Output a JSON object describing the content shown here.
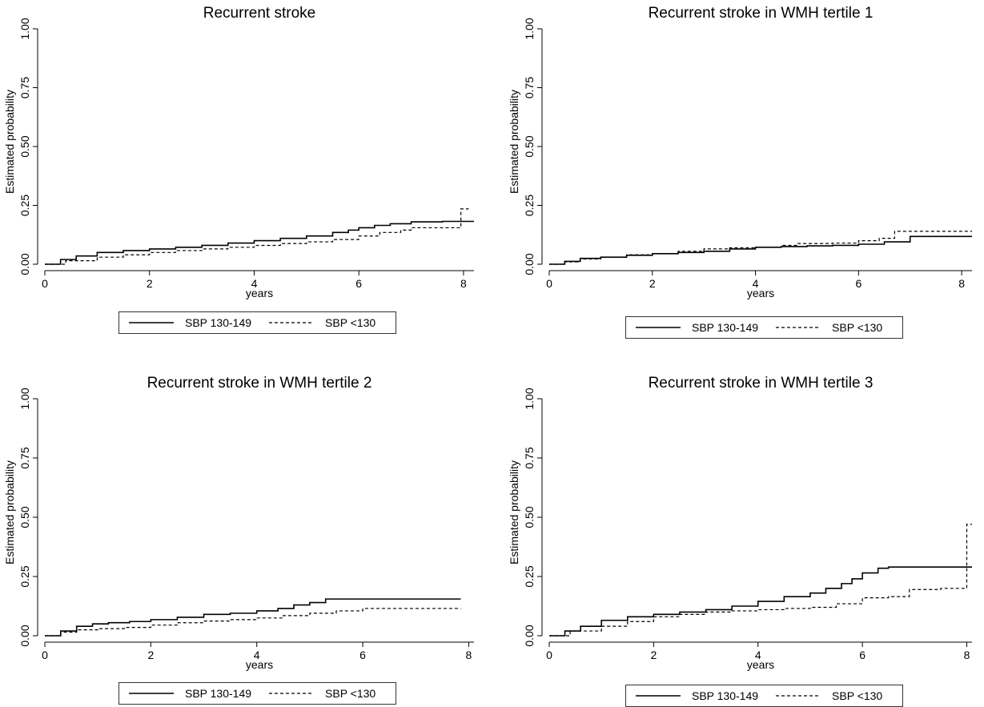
{
  "chart_data": [
    {
      "type": "line",
      "title": "Recurrent stroke",
      "xlabel": "years",
      "ylabel": "Estimated probability",
      "xlim": [
        0,
        8.2
      ],
      "ylim": [
        0,
        1
      ],
      "xticks": [
        0,
        2,
        4,
        6,
        8
      ],
      "yticks": [
        "0.00",
        "0.25",
        "0.50",
        "0.75",
        "1.00"
      ],
      "legend": "bottom",
      "series": [
        {
          "name": "SBP 130-149",
          "style": "solid",
          "x": [
            0,
            0.3,
            0.6,
            1.0,
            1.5,
            2.0,
            2.5,
            3.0,
            3.5,
            4.0,
            4.5,
            5.0,
            5.5,
            5.8,
            6.0,
            6.3,
            6.6,
            7.0,
            7.6,
            8.0,
            8.2
          ],
          "y": [
            0,
            0.02,
            0.035,
            0.05,
            0.058,
            0.065,
            0.072,
            0.08,
            0.09,
            0.1,
            0.11,
            0.12,
            0.135,
            0.145,
            0.155,
            0.165,
            0.172,
            0.18,
            0.182,
            0.182,
            0.182
          ]
        },
        {
          "name": "SBP <130",
          "style": "dashed",
          "x": [
            0,
            0.4,
            1.0,
            1.5,
            2.0,
            2.5,
            3.0,
            3.5,
            4.0,
            4.5,
            5.0,
            5.5,
            6.0,
            6.4,
            6.8,
            7.0,
            7.9,
            7.95,
            8.1
          ],
          "y": [
            0,
            0.015,
            0.03,
            0.04,
            0.05,
            0.058,
            0.065,
            0.072,
            0.08,
            0.088,
            0.095,
            0.105,
            0.12,
            0.135,
            0.145,
            0.155,
            0.155,
            0.235,
            0.235
          ]
        }
      ]
    },
    {
      "type": "line",
      "title": "Recurrent stroke in WMH tertile 1",
      "xlabel": "years",
      "ylabel": "Estimated probability",
      "xlim": [
        0,
        8.2
      ],
      "ylim": [
        0,
        1
      ],
      "xticks": [
        0,
        2,
        4,
        6,
        8
      ],
      "yticks": [
        "0.00",
        "0.25",
        "0.50",
        "0.75",
        "1.00"
      ],
      "legend": "bottom",
      "series": [
        {
          "name": "SBP 130-149",
          "style": "solid",
          "x": [
            0,
            0.3,
            0.6,
            1.0,
            1.5,
            2.0,
            2.5,
            3.0,
            3.5,
            4.0,
            4.5,
            5.0,
            5.5,
            6.0,
            6.5,
            7.0,
            8.2
          ],
          "y": [
            0,
            0.012,
            0.025,
            0.03,
            0.038,
            0.045,
            0.05,
            0.055,
            0.065,
            0.072,
            0.075,
            0.078,
            0.08,
            0.085,
            0.095,
            0.118,
            0.118
          ]
        },
        {
          "name": "SBP <130",
          "style": "dashed",
          "x": [
            0,
            0.3,
            0.6,
            1.0,
            1.5,
            2.0,
            2.5,
            3.0,
            3.5,
            4.0,
            4.5,
            4.8,
            5.5,
            6.0,
            6.4,
            6.7,
            8.2
          ],
          "y": [
            0,
            0.01,
            0.022,
            0.03,
            0.04,
            0.045,
            0.055,
            0.065,
            0.07,
            0.072,
            0.08,
            0.088,
            0.09,
            0.1,
            0.11,
            0.14,
            0.14
          ]
        }
      ]
    },
    {
      "type": "line",
      "title": "Recurrent stroke in WMH tertile 2",
      "xlabel": "years",
      "ylabel": "Estimated probability",
      "xlim": [
        0,
        8.1
      ],
      "ylim": [
        0,
        1
      ],
      "xticks": [
        0,
        2,
        4,
        6,
        8
      ],
      "yticks": [
        "0.00",
        "0.25",
        "0.50",
        "0.75",
        "1.00"
      ],
      "legend": "bottom",
      "series": [
        {
          "name": "SBP 130-149",
          "style": "solid",
          "x": [
            0,
            0.3,
            0.6,
            0.9,
            1.2,
            1.6,
            2.0,
            2.5,
            3.0,
            3.5,
            4.0,
            4.4,
            4.7,
            5.0,
            5.3,
            7.85
          ],
          "y": [
            0,
            0.02,
            0.04,
            0.05,
            0.055,
            0.06,
            0.068,
            0.078,
            0.09,
            0.095,
            0.105,
            0.115,
            0.13,
            0.14,
            0.155,
            0.155
          ]
        },
        {
          "name": "SBP <130",
          "style": "dashed",
          "x": [
            0,
            0.3,
            0.6,
            1.0,
            1.5,
            2.0,
            2.5,
            3.0,
            3.5,
            4.0,
            4.5,
            5.0,
            5.5,
            6.0,
            7.85
          ],
          "y": [
            0,
            0.015,
            0.025,
            0.03,
            0.035,
            0.045,
            0.055,
            0.062,
            0.068,
            0.075,
            0.085,
            0.095,
            0.105,
            0.115,
            0.115
          ]
        }
      ]
    },
    {
      "type": "line",
      "title": "Recurrent stroke in WMH tertile 3",
      "xlabel": "years",
      "ylabel": "Estimated probability",
      "xlim": [
        0,
        8.1
      ],
      "ylim": [
        0,
        1
      ],
      "xticks": [
        0,
        2,
        4,
        6,
        8
      ],
      "yticks": [
        "0.00",
        "0.25",
        "0.50",
        "0.75",
        "1.00"
      ],
      "legend": "bottom",
      "series": [
        {
          "name": "SBP 130-149",
          "style": "solid",
          "x": [
            0,
            0.3,
            0.6,
            1.0,
            1.5,
            2.0,
            2.5,
            3.0,
            3.5,
            4.0,
            4.5,
            5.0,
            5.3,
            5.6,
            5.8,
            6.0,
            6.3,
            6.5,
            8.1
          ],
          "y": [
            0,
            0.02,
            0.04,
            0.065,
            0.08,
            0.09,
            0.1,
            0.11,
            0.125,
            0.145,
            0.165,
            0.18,
            0.2,
            0.22,
            0.24,
            0.265,
            0.285,
            0.29,
            0.29
          ]
        },
        {
          "name": "SBP <130",
          "style": "dashed",
          "x": [
            0,
            0.4,
            1.0,
            1.5,
            2.0,
            2.5,
            3.0,
            3.5,
            4.0,
            4.5,
            5.0,
            5.5,
            6.0,
            6.5,
            6.9,
            7.5,
            7.95,
            8.0,
            8.1
          ],
          "y": [
            0,
            0.02,
            0.04,
            0.06,
            0.08,
            0.09,
            0.1,
            0.105,
            0.11,
            0.115,
            0.12,
            0.135,
            0.16,
            0.165,
            0.195,
            0.2,
            0.2,
            0.47,
            0.47
          ]
        }
      ]
    }
  ]
}
